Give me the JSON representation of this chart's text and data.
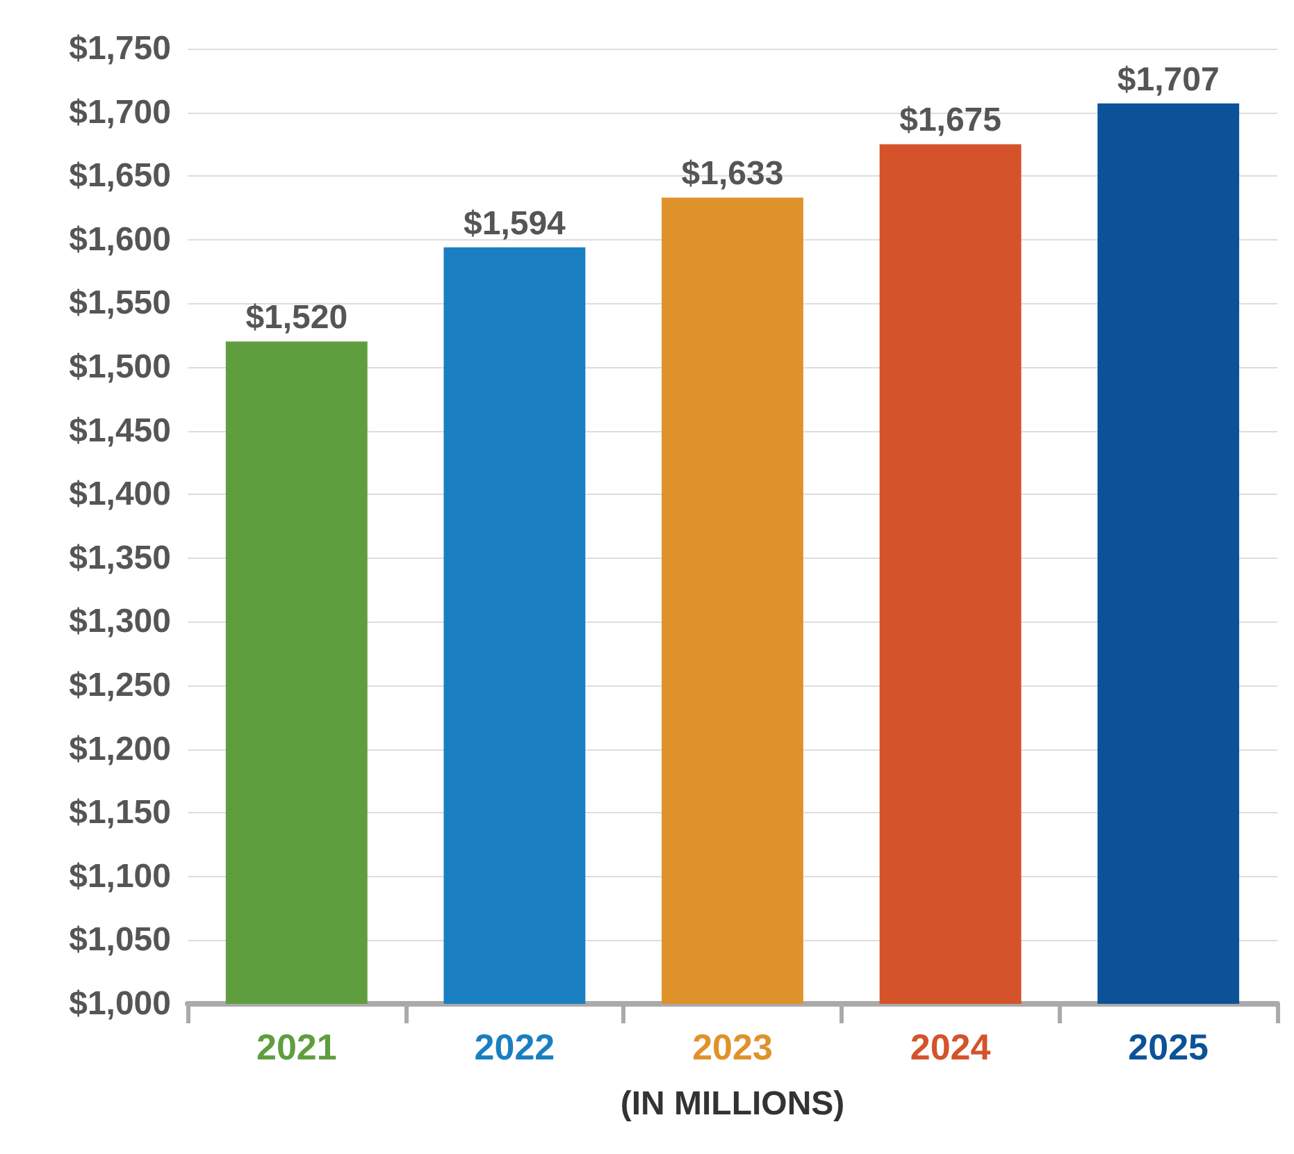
{
  "chart_data": {
    "type": "bar",
    "xlabel": "(IN MILLIONS)",
    "categories": [
      "2021",
      "2022",
      "2023",
      "2024",
      "2025"
    ],
    "values": [
      1520,
      1594,
      1633,
      1675,
      1707
    ],
    "colors": [
      "#5f9e3e",
      "#1a7fc1",
      "#e0922a",
      "#d4532a",
      "#0b5298"
    ],
    "ylim": [
      1000,
      1750
    ],
    "yticks": [
      {
        "value": 1000,
        "label": "$1,000"
      },
      {
        "value": 1050,
        "label": "$1,050"
      },
      {
        "value": 1100,
        "label": "$1,100"
      },
      {
        "value": 1150,
        "label": "$1,150"
      },
      {
        "value": 1200,
        "label": "$1,200"
      },
      {
        "value": 1250,
        "label": "$1,250"
      },
      {
        "value": 1300,
        "label": "$1,300"
      },
      {
        "value": 1350,
        "label": "$1,350"
      },
      {
        "value": 1400,
        "label": "$1,400"
      },
      {
        "value": 1450,
        "label": "$1,450"
      },
      {
        "value": 1500,
        "label": "$1,500"
      },
      {
        "value": 1550,
        "label": "$1,550"
      },
      {
        "value": 1600,
        "label": "$1,600"
      },
      {
        "value": 1650,
        "label": "$1,650"
      },
      {
        "value": 1700,
        "label": "$1,700"
      },
      {
        "value": 1750,
        "label": "$1,750"
      }
    ],
    "value_labels": [
      "$1,520",
      "$1,594",
      "$1,633",
      "$1,675",
      "$1,707"
    ],
    "grid": "y"
  }
}
